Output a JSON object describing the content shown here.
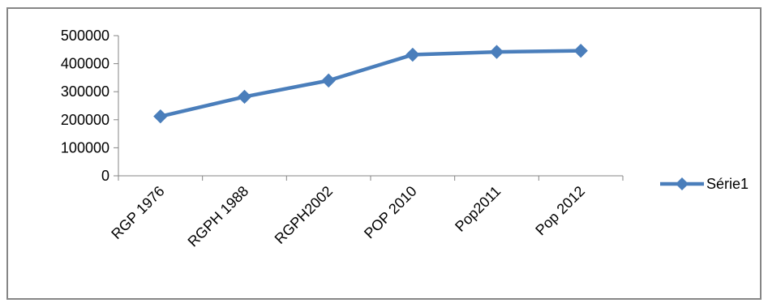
{
  "chart_data": {
    "type": "line",
    "title": "",
    "xlabel": "",
    "ylabel": "",
    "categories": [
      "RGP 1976",
      "RGPH 1988",
      "RGPH2002",
      "POP 2010",
      "Pop2011",
      "Pop 2012"
    ],
    "series": [
      {
        "name": "Série1",
        "values": [
          212000,
          282000,
          340000,
          432000,
          442000,
          446000
        ],
        "color": "#4a7ebb",
        "marker": "diamond"
      }
    ],
    "ylim": [
      0,
      500000
    ],
    "yticks": [
      0,
      100000,
      200000,
      300000,
      400000,
      500000
    ],
    "grid": false,
    "legend": "right"
  }
}
